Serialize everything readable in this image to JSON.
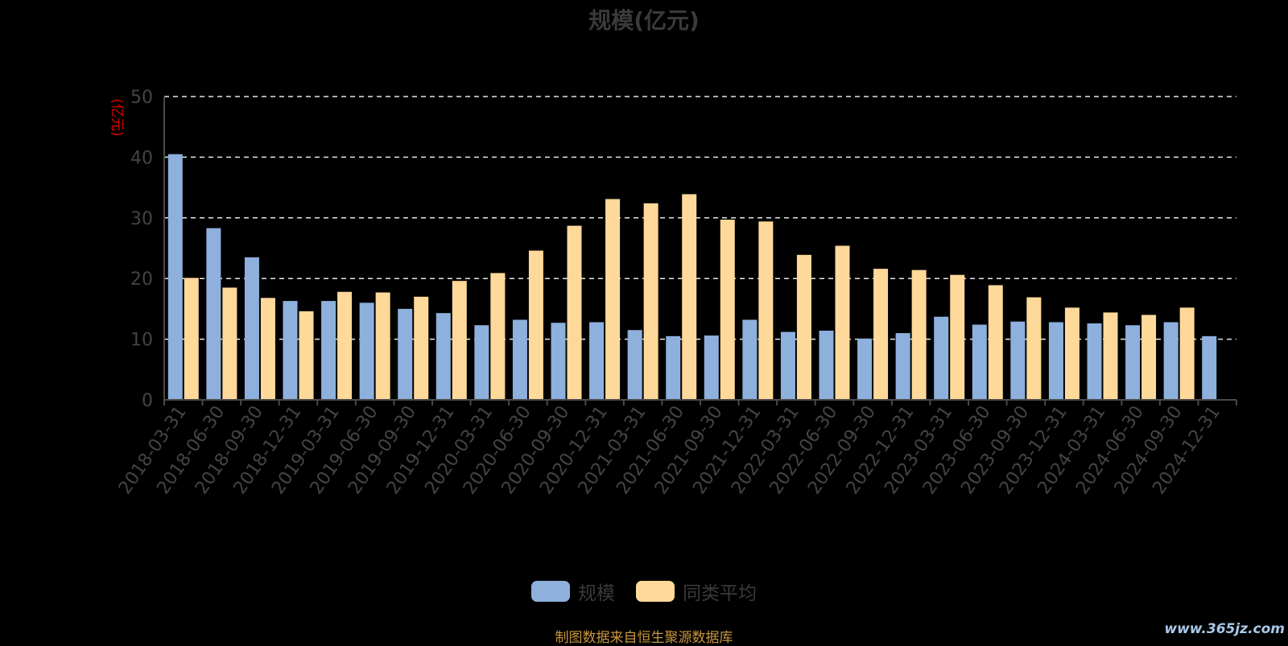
{
  "title": "规模(亿元)",
  "unit_label": "(亿元)",
  "source_note": "制图数据来自恒生聚源数据库",
  "watermark": "www.365jz.com",
  "colors": {
    "background": "#000000",
    "series_scale": "#8eb0dd",
    "series_avg": "#ffd999",
    "grid": "#e6e6e6",
    "axis": "#4a4a4a",
    "tick_text": "#444444",
    "unit_text": "#e00000"
  },
  "legend": [
    {
      "label": "规模",
      "color": "#8eb0dd"
    },
    {
      "label": "同类平均",
      "color": "#ffd999"
    }
  ],
  "chart_data": {
    "type": "bar",
    "title": "规模(亿元)",
    "ylabel": "(亿元)",
    "ylim": [
      0,
      50
    ],
    "yticks": [
      0,
      10,
      20,
      30,
      40,
      50
    ],
    "grid": true,
    "legend_position": "bottom",
    "categories": [
      "2018-03-31",
      "2018-06-30",
      "2018-09-30",
      "2018-12-31",
      "2019-03-31",
      "2019-06-30",
      "2019-09-30",
      "2019-12-31",
      "2020-03-31",
      "2020-06-30",
      "2020-09-30",
      "2020-12-31",
      "2021-03-31",
      "2021-06-30",
      "2021-09-30",
      "2021-12-31",
      "2022-03-31",
      "2022-06-30",
      "2022-09-30",
      "2022-12-31",
      "2023-03-31",
      "2023-06-30",
      "2023-09-30",
      "2023-12-31",
      "2024-03-31",
      "2024-06-30",
      "2024-09-30",
      "2024-12-31"
    ],
    "series": [
      {
        "name": "规模",
        "color": "#8eb0dd",
        "values": [
          40.5,
          28.3,
          23.5,
          16.3,
          16.3,
          16.0,
          15.0,
          14.3,
          12.3,
          13.2,
          12.7,
          12.8,
          11.5,
          10.5,
          10.6,
          13.2,
          11.2,
          11.4,
          10.1,
          11.0,
          13.7,
          12.4,
          12.9,
          12.8,
          12.6,
          12.3,
          12.8,
          10.5
        ]
      },
      {
        "name": "同类平均",
        "color": "#ffd999",
        "values": [
          20.1,
          18.5,
          16.8,
          14.6,
          17.8,
          17.7,
          17.0,
          19.6,
          20.9,
          24.6,
          28.7,
          33.1,
          32.4,
          33.9,
          29.7,
          29.4,
          23.9,
          25.4,
          21.6,
          21.4,
          20.6,
          18.9,
          16.9,
          15.2,
          14.4,
          14.0,
          15.2,
          null
        ]
      }
    ]
  }
}
